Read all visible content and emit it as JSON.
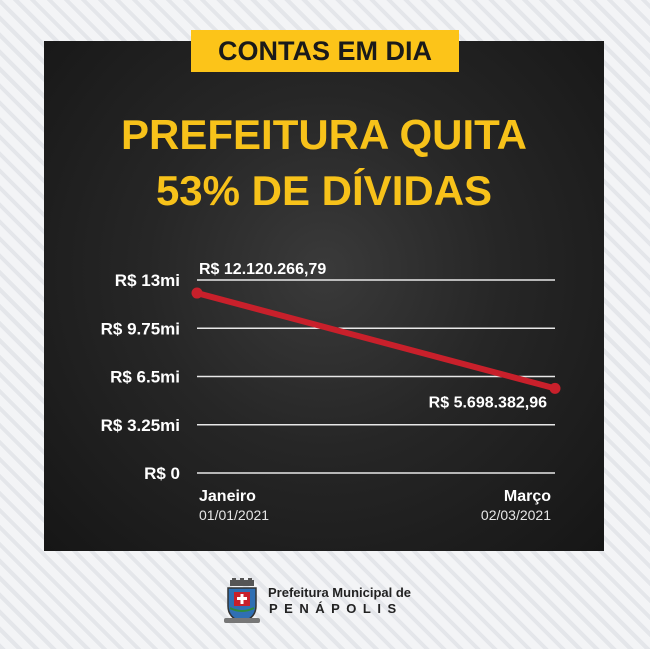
{
  "tag": "CONTAS EM DIA",
  "headline": {
    "line1": "PREFEITURA QUITA",
    "line2": "53% DE DÍVIDAS"
  },
  "colors": {
    "accent": "#f7c21a",
    "line": "#c8202b",
    "panel": "#222222"
  },
  "chart_data": {
    "type": "line",
    "title": "",
    "xlabel": "",
    "ylabel": "",
    "ylim": [
      0,
      13000000
    ],
    "yticks": [
      {
        "value": 13000000,
        "label": "R$ 13mi"
      },
      {
        "value": 9750000,
        "label": "R$ 9.75mi"
      },
      {
        "value": 6500000,
        "label": "R$ 6.5mi"
      },
      {
        "value": 3250000,
        "label": "R$ 3.25mi"
      },
      {
        "value": 0,
        "label": "R$ 0"
      }
    ],
    "categories": [
      {
        "label": "Janeiro",
        "date": "01/01/2021"
      },
      {
        "label": "Março",
        "date": "02/03/2021"
      }
    ],
    "values": [
      12120266.79,
      5698382.96
    ],
    "data_labels": [
      "R$ 12.120.266,79",
      "R$ 5.698.382,96"
    ],
    "grid": true
  },
  "footer": {
    "line1": "Prefeitura Municipal de",
    "line2": "PENÁPOLIS",
    "logo_icon": "city-coat-of-arms-icon"
  }
}
